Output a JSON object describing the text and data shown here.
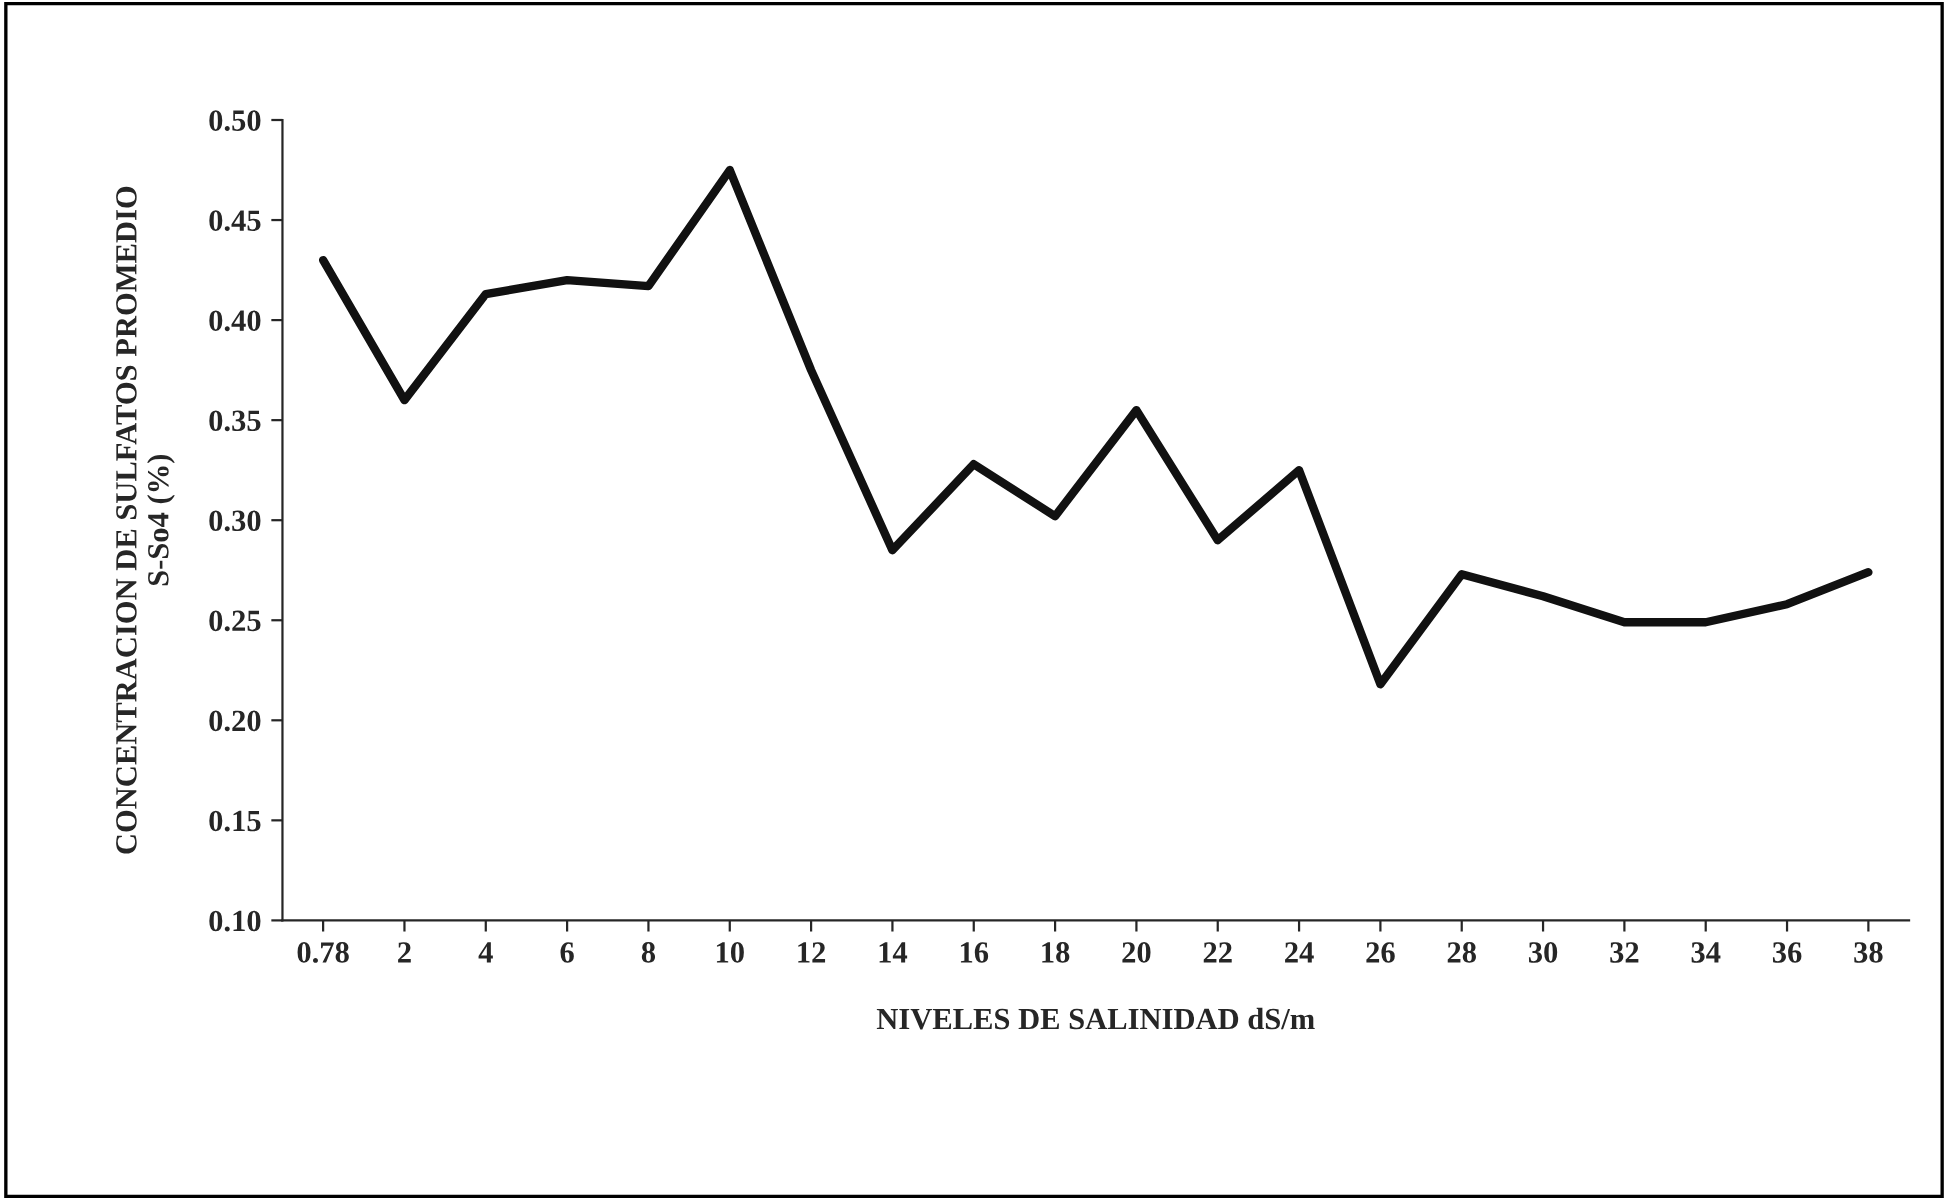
{
  "chart_data": {
    "type": "line",
    "xlabel": "NIVELES DE SALINIDAD dS/m",
    "ylabel": "CONCENTRACION DE SULFATOS PROMEDIO\nS-So4 (%)",
    "categories": [
      "0.78",
      "2",
      "4",
      "6",
      "8",
      "10",
      "12",
      "14",
      "16",
      "18",
      "20",
      "22",
      "24",
      "26",
      "28",
      "30",
      "32",
      "34",
      "36",
      "38"
    ],
    "series": [
      {
        "color": "#111111",
        "values": [
          0.43,
          0.36,
          0.413,
          0.42,
          0.417,
          0.475,
          0.375,
          0.285,
          0.328,
          0.302,
          0.355,
          0.29,
          0.325,
          0.218,
          0.273,
          0.262,
          0.249,
          0.249,
          0.258,
          0.274
        ]
      }
    ],
    "ylim": [
      0.1,
      0.5
    ],
    "yticks": [
      {
        "value": 0.1,
        "label": "0.10"
      },
      {
        "value": 0.15,
        "label": "0.15"
      },
      {
        "value": 0.2,
        "label": "0.20"
      },
      {
        "value": 0.25,
        "label": "0.25"
      },
      {
        "value": 0.3,
        "label": "0.30"
      },
      {
        "value": 0.35,
        "label": "0.35"
      },
      {
        "value": 0.4,
        "label": "0.40"
      },
      {
        "value": 0.45,
        "label": "0.45"
      },
      {
        "value": 0.5,
        "label": "0.50"
      }
    ],
    "grid": false,
    "legend": false,
    "marker": "none",
    "line_style": "solid"
  }
}
